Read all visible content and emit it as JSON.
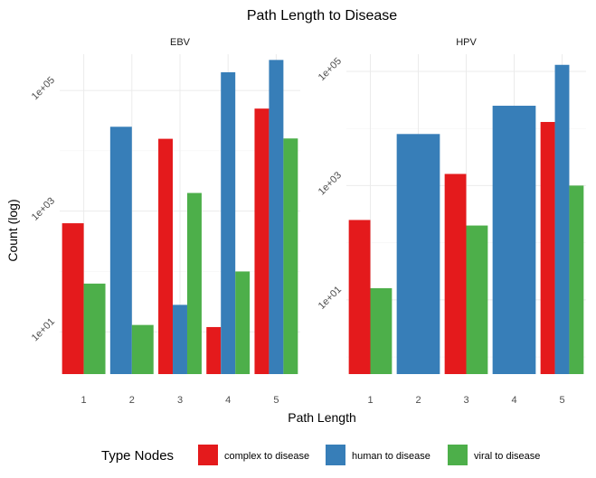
{
  "chart_data": {
    "type": "bar",
    "title": "Path Length to Disease",
    "xlabel": "Path Length",
    "ylabel": "Count (log)",
    "y_scale": "log10",
    "y_tick_labels": [
      "1e+01",
      "1e+03",
      "1e+05"
    ],
    "categories": [
      "1",
      "2",
      "3",
      "4",
      "5"
    ],
    "legend": {
      "title": "Type Nodes",
      "position": "bottom",
      "entries": [
        {
          "name": "complex to disease",
          "color": "#E41A1C"
        },
        {
          "name": "human to disease",
          "color": "#377EB8"
        },
        {
          "name": "viral to disease",
          "color": "#4DAF4A"
        }
      ]
    },
    "facets": [
      {
        "name": "EBV",
        "ylim_log10": [
          0.3,
          5.6
        ],
        "bars": [
          {
            "x": "1",
            "type": "complex to disease",
            "value": 630
          },
          {
            "x": "1",
            "type": "viral to disease",
            "value": 63
          },
          {
            "x": "2",
            "type": "human to disease",
            "value": 25000
          },
          {
            "x": "2",
            "type": "viral to disease",
            "value": 13
          },
          {
            "x": "3",
            "type": "complex to disease",
            "value": 15800
          },
          {
            "x": "3",
            "type": "human to disease",
            "value": 28
          },
          {
            "x": "3",
            "type": "viral to disease",
            "value": 2000
          },
          {
            "x": "4",
            "type": "complex to disease",
            "value": 12
          },
          {
            "x": "4",
            "type": "human to disease",
            "value": 200000
          },
          {
            "x": "4",
            "type": "viral to disease",
            "value": 100
          },
          {
            "x": "5",
            "type": "complex to disease",
            "value": 50000
          },
          {
            "x": "5",
            "type": "human to disease",
            "value": 320000
          },
          {
            "x": "5",
            "type": "viral to disease",
            "value": 16000
          }
        ]
      },
      {
        "name": "HPV",
        "ylim_log10": [
          -0.3,
          5.3
        ],
        "bars": [
          {
            "x": "1",
            "type": "complex to disease",
            "value": 250
          },
          {
            "x": "1",
            "type": "viral to disease",
            "value": 16
          },
          {
            "x": "2",
            "type": "human to disease",
            "value": 8000
          },
          {
            "x": "3",
            "type": "complex to disease",
            "value": 1600
          },
          {
            "x": "3",
            "type": "viral to disease",
            "value": 200
          },
          {
            "x": "4",
            "type": "human to disease",
            "value": 25000
          },
          {
            "x": "5",
            "type": "complex to disease",
            "value": 13000
          },
          {
            "x": "5",
            "type": "human to disease",
            "value": 130000
          },
          {
            "x": "5",
            "type": "viral to disease",
            "value": 1000
          }
        ]
      }
    ],
    "grid": true,
    "theme": "minimal"
  }
}
